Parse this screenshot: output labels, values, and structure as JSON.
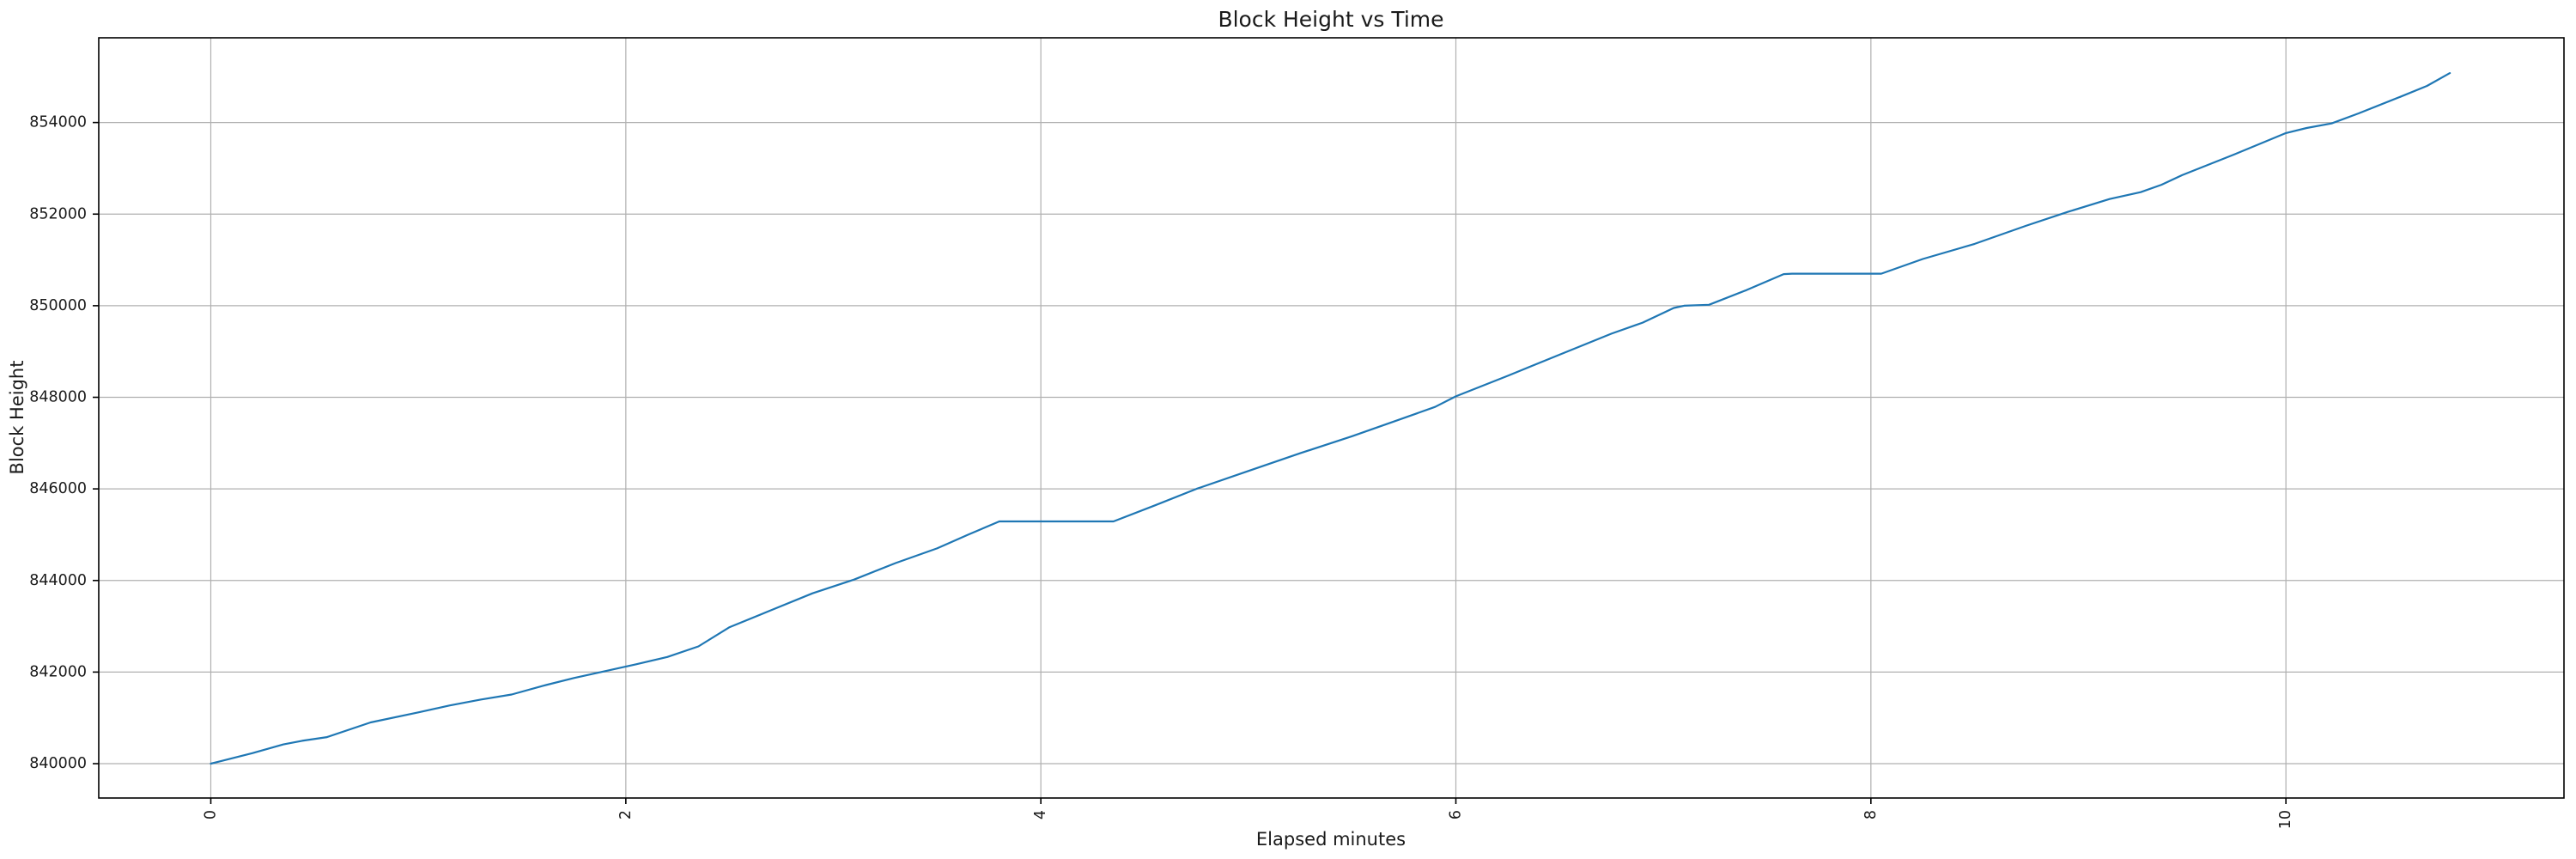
{
  "figure": {
    "background": "#ffffff"
  },
  "chart_data": {
    "type": "line",
    "title": "Block Height vs Time",
    "xlabel": "Elapsed minutes",
    "ylabel": "Block Height",
    "legend": "none",
    "grid": true,
    "x_ticks": [
      0,
      2,
      4,
      6,
      8,
      10
    ],
    "x_tick_labels": [
      "0",
      "2",
      "4",
      "6",
      "8",
      "10"
    ],
    "x_tick_rotation_deg": 90,
    "y_ticks": [
      840000,
      842000,
      844000,
      846000,
      848000,
      850000,
      852000,
      854000
    ],
    "y_tick_labels": [
      "840000",
      "842000",
      "844000",
      "846000",
      "848000",
      "850000",
      "852000",
      "854000"
    ],
    "xlim": [
      -0.54,
      11.34
    ],
    "ylim": [
      839250,
      855850
    ],
    "colors": {
      "line": "#1f77b4",
      "grid": "#b0b0b0",
      "spine": "#000000",
      "tick": "#000000",
      "background": "#ffffff"
    },
    "series": [
      {
        "name": "block-height",
        "x": [
          0,
          0.2,
          0.35,
          0.44,
          0.56,
          0.77,
          1.0,
          1.15,
          1.3,
          1.45,
          1.6,
          1.75,
          1.9,
          2.05,
          2.2,
          2.35,
          2.5,
          2.7,
          2.9,
          3.1,
          3.3,
          3.5,
          3.65,
          3.8,
          4.35,
          4.55,
          4.75,
          5.0,
          5.25,
          5.5,
          5.7,
          5.9,
          6.0,
          6.25,
          6.5,
          6.75,
          6.9,
          7.05,
          7.1,
          7.22,
          7.4,
          7.58,
          7.62,
          8.05,
          8.25,
          8.5,
          8.75,
          8.95,
          9.15,
          9.3,
          9.4,
          9.5,
          9.75,
          10.0,
          10.1,
          10.22,
          10.35,
          10.55,
          10.68,
          10.79
        ],
        "y": [
          840000,
          840230,
          840420,
          840500,
          840580,
          840900,
          841120,
          841270,
          841400,
          841510,
          841700,
          841870,
          842020,
          842170,
          842330,
          842560,
          842980,
          843350,
          843720,
          844020,
          844380,
          844700,
          845000,
          845290,
          845290,
          845640,
          846000,
          846390,
          846780,
          847150,
          847470,
          847790,
          848020,
          848470,
          848930,
          849390,
          849630,
          849950,
          850000,
          850020,
          850340,
          850690,
          850700,
          850700,
          851020,
          851350,
          851750,
          852050,
          852330,
          852480,
          852640,
          852850,
          853300,
          853770,
          853880,
          853980,
          854200,
          854560,
          854800,
          855080
        ]
      }
    ]
  }
}
